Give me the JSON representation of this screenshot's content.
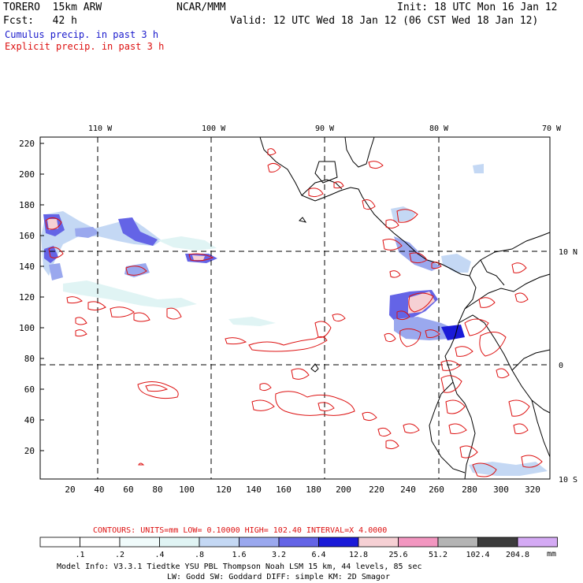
{
  "header": {
    "model_title": "TORERO  15km ARW",
    "org": "NCAR/MMM",
    "init": "Init: 18 UTC Mon 16 Jan 12",
    "fcst": "Fcst:   42 h",
    "valid": "Valid: 12 UTC Wed 18 Jan 12 (06 CST Wed 18 Jan 12)"
  },
  "legend_lines": [
    {
      "text": "Cumulus precip. in past 3 h",
      "color": "#1a1acc"
    },
    {
      "text": "Explicit precip. in past 3 h",
      "color": "#dd1111"
    }
  ],
  "map": {
    "lon_labels": [
      "110 W",
      "100 W",
      "90 W",
      "80 W",
      "70 W"
    ],
    "lat_labels": [
      "10 N",
      "0",
      "10 S"
    ],
    "y_ticks": [
      "220",
      "200",
      "180",
      "160",
      "140",
      "120",
      "100",
      "80",
      "60",
      "40",
      "20"
    ],
    "x_ticks": [
      "20",
      "40",
      "60",
      "80",
      "100",
      "120",
      "140",
      "160",
      "180",
      "200",
      "220",
      "240",
      "260",
      "280",
      "300",
      "320"
    ]
  },
  "contour_info": {
    "text": "CONTOURS:  UNITS=mm  LOW= 0.10000      HIGH=  102.40      INTERVAL=X  4.0000",
    "color": "#dd1111"
  },
  "colorbar": {
    "labels": [
      ".1",
      ".2",
      ".4",
      ".8",
      "1.6",
      "3.2",
      "6.4",
      "12.8",
      "25.6",
      "51.2",
      "102.4",
      "204.8"
    ],
    "units": "mm",
    "colors": [
      "#ffffff",
      "#ffffff",
      "#f0fbfb",
      "#e0f4f4",
      "#c4d8f4",
      "#9aa8ee",
      "#6464e6",
      "#1a1ad8",
      "#f6d0d4",
      "#f296c0",
      "#b4b4b4",
      "#3c3c3c",
      "#d4aaf4"
    ]
  },
  "footer": {
    "line1": "Model Info: V3.3.1     Tiedtke YSU PBL   Thompson     Noah LSM  15 km,   44 levels,   85 sec",
    "line2": "LW: Godd SW: Goddard DIFF: simple KM: 2D Smagor"
  }
}
